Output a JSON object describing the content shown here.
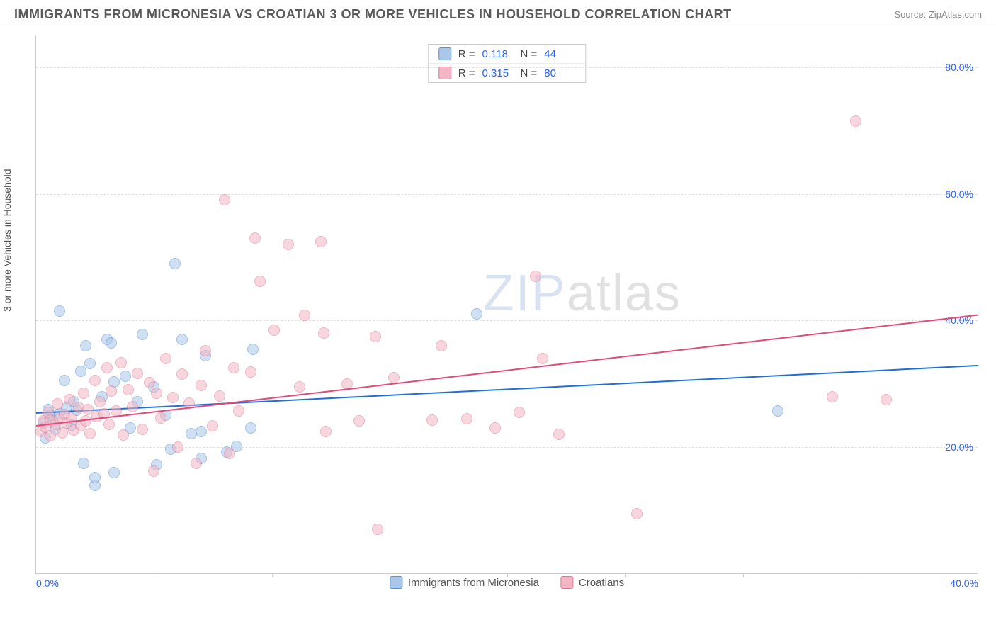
{
  "header": {
    "title": "IMMIGRANTS FROM MICRONESIA VS CROATIAN 3 OR MORE VEHICLES IN HOUSEHOLD CORRELATION CHART",
    "source": "Source: ZipAtlas.com"
  },
  "chart": {
    "type": "scatter",
    "ylabel": "3 or more Vehicles in Household",
    "background_color": "#ffffff",
    "grid_color": "#e0e0e0",
    "axis_color": "#cccccc",
    "tick_color": "#2962ff",
    "xlim": [
      0,
      40
    ],
    "ylim": [
      0,
      85
    ],
    "xticks": [
      {
        "v": 0,
        "l": "0.0%"
      },
      {
        "v": 40,
        "l": "40.0%"
      }
    ],
    "yticks": [
      {
        "v": 20,
        "l": "20.0%"
      },
      {
        "v": 40,
        "l": "40.0%"
      },
      {
        "v": 60,
        "l": "60.0%"
      },
      {
        "v": 80,
        "l": "80.0%"
      }
    ],
    "x_minor_ticks": [
      5,
      10,
      15,
      20,
      25,
      30,
      35
    ],
    "marker_radius": 8,
    "marker_opacity": 0.55,
    "series": [
      {
        "id": "micronesia",
        "label": "Immigrants from Micronesia",
        "fill": "#a9c7ea",
        "stroke": "#5a8fd0",
        "R": "0.118",
        "N": "44",
        "trend": {
          "x1": 0,
          "y1": 25.5,
          "x2": 40,
          "y2": 33,
          "color": "#1e6fd9",
          "width": 2
        },
        "points": [
          [
            0.3,
            23.8
          ],
          [
            0.4,
            21.5
          ],
          [
            0.5,
            26
          ],
          [
            0.6,
            25
          ],
          [
            0.7,
            24.2
          ],
          [
            0.8,
            22.8
          ],
          [
            1.0,
            25.3
          ],
          [
            1.0,
            41.5
          ],
          [
            1.2,
            30.5
          ],
          [
            1.3,
            26.2
          ],
          [
            1.5,
            23.5
          ],
          [
            1.6,
            27.2
          ],
          [
            1.7,
            25.8
          ],
          [
            1.9,
            32
          ],
          [
            2.0,
            17.5
          ],
          [
            2.1,
            36
          ],
          [
            2.3,
            33.2
          ],
          [
            2.5,
            14
          ],
          [
            2.5,
            15.2
          ],
          [
            2.8,
            28
          ],
          [
            3.0,
            37
          ],
          [
            3.2,
            36.5
          ],
          [
            3.3,
            30.3
          ],
          [
            3.3,
            16
          ],
          [
            3.8,
            31.2
          ],
          [
            4.0,
            23
          ],
          [
            4.3,
            27.2
          ],
          [
            4.5,
            37.8
          ],
          [
            5.0,
            29.5
          ],
          [
            5.1,
            17.2
          ],
          [
            5.5,
            25
          ],
          [
            5.7,
            19.7
          ],
          [
            5.9,
            49
          ],
          [
            6.2,
            37
          ],
          [
            6.6,
            22.2
          ],
          [
            7.0,
            22.5
          ],
          [
            7.0,
            18.2
          ],
          [
            7.2,
            34.5
          ],
          [
            8.1,
            19.2
          ],
          [
            8.5,
            20.1
          ],
          [
            9.1,
            23
          ],
          [
            9.2,
            35.5
          ],
          [
            18.7,
            41
          ],
          [
            31.5,
            25.7
          ]
        ]
      },
      {
        "id": "croatians",
        "label": "Croatians",
        "fill": "#f2b6c4",
        "stroke": "#e07a94",
        "R": "0.315",
        "N": "80",
        "trend": {
          "x1": 0,
          "y1": 23.5,
          "x2": 40,
          "y2": 41,
          "color": "#e24a78",
          "width": 2
        },
        "points": [
          [
            0.2,
            22.5
          ],
          [
            0.3,
            24.2
          ],
          [
            0.4,
            23.1
          ],
          [
            0.5,
            25.5
          ],
          [
            0.6,
            24.3
          ],
          [
            0.6,
            21.8
          ],
          [
            0.8,
            23.6
          ],
          [
            0.9,
            26.8
          ],
          [
            1.0,
            24.5
          ],
          [
            1.1,
            22.3
          ],
          [
            1.2,
            25.2
          ],
          [
            1.3,
            23.8
          ],
          [
            1.4,
            27.5
          ],
          [
            1.5,
            24.6
          ],
          [
            1.6,
            22.7
          ],
          [
            1.8,
            26.3
          ],
          [
            1.9,
            23.4
          ],
          [
            2.0,
            28.5
          ],
          [
            2.1,
            24.2
          ],
          [
            2.2,
            25.9
          ],
          [
            2.3,
            22.1
          ],
          [
            2.5,
            30.5
          ],
          [
            2.6,
            24.8
          ],
          [
            2.7,
            27.2
          ],
          [
            2.9,
            25.3
          ],
          [
            3.0,
            32.5
          ],
          [
            3.1,
            23.6
          ],
          [
            3.2,
            28.8
          ],
          [
            3.4,
            25.7
          ],
          [
            3.6,
            33.3
          ],
          [
            3.7,
            21.9
          ],
          [
            3.9,
            29.1
          ],
          [
            4.1,
            26.4
          ],
          [
            4.3,
            31.7
          ],
          [
            4.5,
            22.8
          ],
          [
            4.8,
            30.2
          ],
          [
            5.0,
            16.2
          ],
          [
            5.1,
            28.5
          ],
          [
            5.3,
            24.6
          ],
          [
            5.5,
            34
          ],
          [
            5.8,
            27.8
          ],
          [
            6.0,
            20.0
          ],
          [
            6.2,
            31.5
          ],
          [
            6.5,
            26.9
          ],
          [
            6.8,
            17.5
          ],
          [
            7.0,
            29.8
          ],
          [
            7.2,
            35.2
          ],
          [
            7.5,
            23.4
          ],
          [
            7.8,
            28.1
          ],
          [
            8.0,
            59
          ],
          [
            8.2,
            19
          ],
          [
            8.4,
            32.5
          ],
          [
            8.6,
            25.7
          ],
          [
            9.1,
            31.9
          ],
          [
            9.3,
            53
          ],
          [
            9.5,
            46.2
          ],
          [
            10.1,
            38.5
          ],
          [
            10.7,
            52
          ],
          [
            11.2,
            29.5
          ],
          [
            11.4,
            40.8
          ],
          [
            12.1,
            52.5
          ],
          [
            12.2,
            38
          ],
          [
            12.3,
            22.5
          ],
          [
            13.2,
            30
          ],
          [
            13.7,
            24.2
          ],
          [
            14.4,
            37.5
          ],
          [
            14.5,
            7
          ],
          [
            15.2,
            31
          ],
          [
            16.8,
            24.3
          ],
          [
            17.2,
            36
          ],
          [
            18.3,
            24.5
          ],
          [
            19.5,
            23
          ],
          [
            20.5,
            25.5
          ],
          [
            21.2,
            47
          ],
          [
            21.5,
            34
          ],
          [
            22.2,
            22
          ],
          [
            25.5,
            9.5
          ],
          [
            33.8,
            28
          ],
          [
            34.8,
            71.5
          ],
          [
            36.1,
            27.5
          ]
        ]
      }
    ]
  },
  "watermark": {
    "part1": "ZIP",
    "part2": "atlas"
  }
}
